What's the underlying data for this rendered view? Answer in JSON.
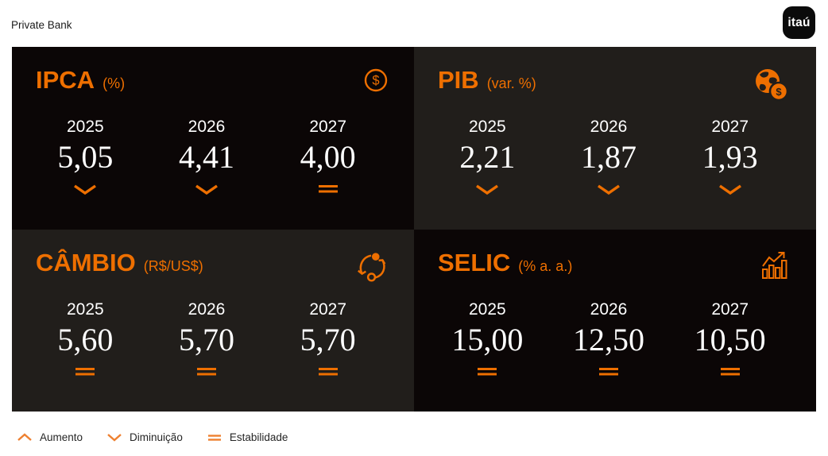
{
  "page": {
    "brand_label": "Private Bank",
    "logo_text": "itaú"
  },
  "colors": {
    "accent": "#ee6f00",
    "panel_darkest": "#0b0606",
    "panel_dark": "#211e1b",
    "value_text": "#ffffff",
    "page_background": "#ffffff"
  },
  "years": [
    "2025",
    "2026",
    "2027"
  ],
  "panels": [
    {
      "title": "IPCA",
      "unit": "(%)",
      "icon": "dollar-circle-icon",
      "values": [
        "5,05",
        "4,41",
        "4,00"
      ],
      "trends": [
        "down",
        "down",
        "stable"
      ]
    },
    {
      "title": "PIB",
      "unit": "(var. %)",
      "icon": "globe-dollar-icon",
      "values": [
        "2,21",
        "1,87",
        "1,93"
      ],
      "trends": [
        "down",
        "down",
        "down"
      ]
    },
    {
      "title": "CÂMBIO",
      "unit": "(R$/US$)",
      "icon": "currency-exchange-icon",
      "values": [
        "5,60",
        "5,70",
        "5,70"
      ],
      "trends": [
        "stable",
        "stable",
        "stable"
      ]
    },
    {
      "title": "SELIC",
      "unit": "(% a. a.)",
      "icon": "bar-chart-growth-icon",
      "values": [
        "15,00",
        "12,50",
        "10,50"
      ],
      "trends": [
        "stable",
        "stable",
        "stable"
      ]
    }
  ],
  "legend": [
    {
      "symbol": "up",
      "label": "Aumento"
    },
    {
      "symbol": "down",
      "label": "Diminuição"
    },
    {
      "symbol": "stable",
      "label": "Estabilidade"
    }
  ],
  "chart_data": {
    "type": "table",
    "categories": [
      "2025",
      "2026",
      "2027"
    ],
    "series": [
      {
        "name": "IPCA (%)",
        "values": [
          5.05,
          4.41,
          4.0
        ],
        "trends": [
          "down",
          "down",
          "stable"
        ]
      },
      {
        "name": "PIB (var. %)",
        "values": [
          2.21,
          1.87,
          1.93
        ],
        "trends": [
          "down",
          "down",
          "down"
        ]
      },
      {
        "name": "CÂMBIO (R$/US$)",
        "values": [
          5.6,
          5.7,
          5.7
        ],
        "trends": [
          "stable",
          "stable",
          "stable"
        ]
      },
      {
        "name": "SELIC (% a. a.)",
        "values": [
          15.0,
          12.5,
          10.5
        ],
        "trends": [
          "stable",
          "stable",
          "stable"
        ]
      }
    ],
    "legend_entries": [
      "Aumento",
      "Diminuição",
      "Estabilidade"
    ]
  }
}
